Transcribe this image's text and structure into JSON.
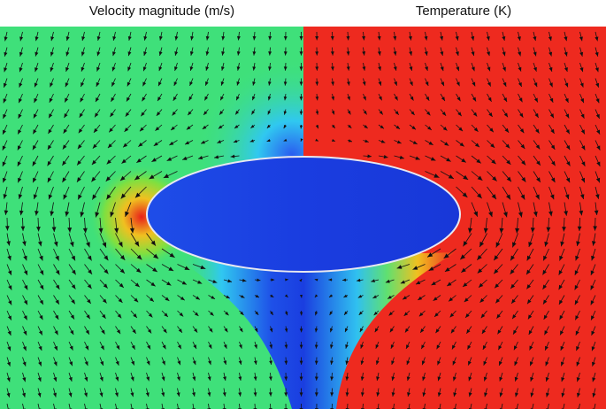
{
  "panels": [
    {
      "title": "Velocity magnitude (m/s)"
    },
    {
      "title": "Temperature (K)"
    }
  ]
}
